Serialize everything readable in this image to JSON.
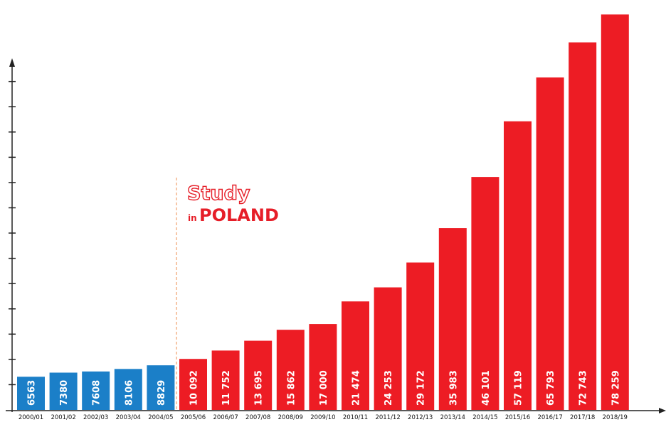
{
  "chart_data": {
    "type": "bar",
    "categories": [
      "2000/01",
      "2001/02",
      "2002/03",
      "2003/04",
      "2004/05",
      "2005/06",
      "2006/07",
      "2007/08",
      "2008/09",
      "2009/10",
      "2010/11",
      "2011/12",
      "2012/13",
      "2013/14",
      "2014/15",
      "2015/16",
      "2016/17",
      "2017/18",
      "2018/19"
    ],
    "values": [
      6563,
      7380,
      7608,
      8106,
      8829,
      10092,
      11752,
      13695,
      15862,
      17000,
      21474,
      24253,
      29172,
      35983,
      46101,
      57119,
      65793,
      72743,
      78259
    ],
    "value_labels": [
      "6563",
      "7380",
      "7608",
      "8106",
      "8829",
      "10 092",
      "11 752",
      "13 695",
      "15 862",
      "17 000",
      "21 474",
      "24 253",
      "29 172",
      "35 983",
      "46 101",
      "57 119",
      "65 793",
      "72 743",
      "78 259"
    ],
    "colors": {
      "before_program": "#1b7fc8",
      "after_program": "#ed1c24",
      "divider": "#f3b48a",
      "axis": "#222222"
    },
    "program_start_index": 5,
    "ylim": [
      0,
      80000
    ],
    "y_tick_step": 5000,
    "grid": false,
    "logo": {
      "line1": "Study",
      "line2_prefix": "in",
      "line2": "POLAND"
    }
  }
}
